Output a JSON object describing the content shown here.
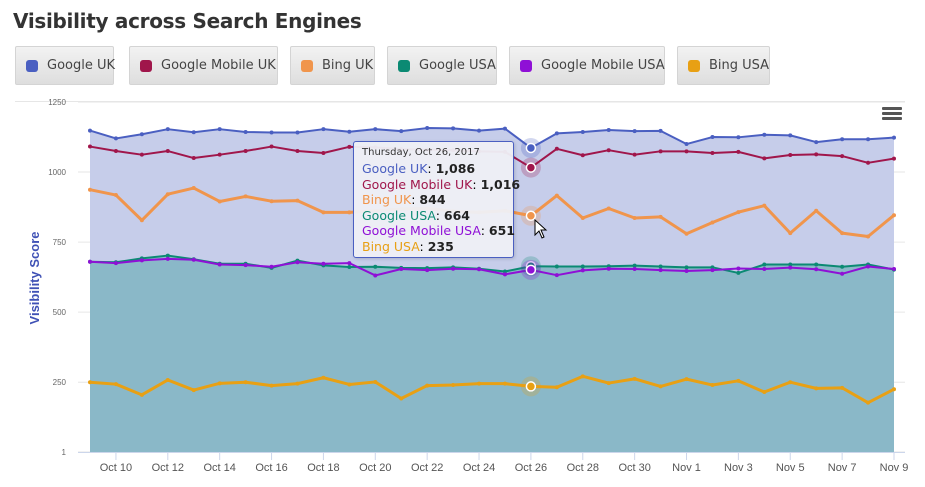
{
  "title": "Visibility across Search Engines",
  "legend": [
    {
      "label": "Google UK",
      "color": "#4a5fc1"
    },
    {
      "label": "Google Mobile UK",
      "color": "#a0164b"
    },
    {
      "label": "Bing UK",
      "color": "#f0954c"
    },
    {
      "label": "Google USA",
      "color": "#0b8a73"
    },
    {
      "label": "Google Mobile USA",
      "color": "#8f10d6"
    },
    {
      "label": "Bing USA",
      "color": "#e8a014"
    }
  ],
  "menu_icon": "hamburger-menu-icon",
  "tooltip": {
    "date": "Thursday, Oct 26, 2017",
    "rows": [
      {
        "name": "Google UK",
        "value": "1,086",
        "color": "#4a5fc1"
      },
      {
        "name": "Google Mobile UK",
        "value": "1,016",
        "color": "#a0164b"
      },
      {
        "name": "Bing UK",
        "value": "844",
        "color": "#f0954c"
      },
      {
        "name": "Google USA",
        "value": "664",
        "color": "#0b8a73"
      },
      {
        "name": "Google Mobile USA",
        "value": "651",
        "color": "#8f10d6"
      },
      {
        "name": "Bing USA",
        "value": "235",
        "color": "#e8a014"
      }
    ]
  },
  "chart_data": {
    "type": "line",
    "title": "Visibility across Search Engines",
    "xlabel": "",
    "ylabel": "Visibility Score",
    "ylim": [
      1,
      1250
    ],
    "yticks": [
      "1",
      "250",
      "500",
      "750",
      "1000",
      "1250"
    ],
    "ytick_values": [
      1,
      250,
      500,
      750,
      1000,
      1250
    ],
    "xtick_labels": [
      "Oct 10",
      "Oct 12",
      "Oct 14",
      "Oct 16",
      "Oct 18",
      "Oct 20",
      "Oct 22",
      "Oct 24",
      "Oct 26",
      "Oct 28",
      "Oct 30",
      "Nov 1",
      "Nov 3",
      "Nov 5",
      "Nov 7",
      "Nov 9"
    ],
    "xtick_indices": [
      1,
      3,
      5,
      7,
      9,
      11,
      13,
      15,
      17,
      19,
      21,
      23,
      25,
      27,
      29,
      31
    ],
    "x": [
      "Oct 9",
      "Oct 10",
      "Oct 11",
      "Oct 12",
      "Oct 13",
      "Oct 14",
      "Oct 15",
      "Oct 16",
      "Oct 17",
      "Oct 18",
      "Oct 19",
      "Oct 20",
      "Oct 21",
      "Oct 22",
      "Oct 23",
      "Oct 24",
      "Oct 25",
      "Oct 26",
      "Oct 27",
      "Oct 28",
      "Oct 29",
      "Oct 30",
      "Oct 31",
      "Nov 1",
      "Nov 2",
      "Nov 3",
      "Nov 4",
      "Nov 5",
      "Nov 6",
      "Nov 7",
      "Nov 8",
      "Nov 9"
    ],
    "grid": true,
    "legend": "top",
    "highlighted_index": 17,
    "series": [
      {
        "name": "Google UK",
        "color": "#4a5fc1",
        "fill": true,
        "values": [
          1148,
          1120,
          1135,
          1153,
          1142,
          1153,
          1143,
          1141,
          1141,
          1153,
          1144,
          1153,
          1146,
          1157,
          1156,
          1148,
          1155,
          1086,
          1138,
          1143,
          1150,
          1146,
          1147,
          1100,
          1125,
          1124,
          1133,
          1131,
          1107,
          1117,
          1117,
          1123
        ]
      },
      {
        "name": "Google Mobile UK",
        "color": "#a0164b",
        "fill": false,
        "values": [
          1091,
          1075,
          1062,
          1075,
          1050,
          1062,
          1075,
          1091,
          1075,
          1068,
          1090,
          1088,
          1082,
          1080,
          1078,
          1074,
          1072,
          1016,
          1083,
          1060,
          1078,
          1062,
          1074,
          1074,
          1068,
          1072,
          1049,
          1061,
          1063,
          1057,
          1033,
          1048
        ]
      },
      {
        "name": "Bing UK",
        "color": "#f0954c",
        "fill": false,
        "values": [
          937,
          918,
          828,
          921,
          943,
          895,
          913,
          896,
          898,
          856,
          856,
          862,
          868,
          870,
          860,
          856,
          862,
          844,
          916,
          836,
          870,
          836,
          840,
          780,
          820,
          857,
          880,
          782,
          862,
          782,
          770,
          846
        ]
      },
      {
        "name": "Google USA",
        "color": "#0b8a73",
        "fill": true,
        "values": [
          680,
          678,
          692,
          702,
          689,
          673,
          673,
          658,
          684,
          667,
          661,
          662,
          658,
          657,
          660,
          655,
          645,
          664,
          663,
          663,
          664,
          666,
          663,
          660,
          660,
          640,
          670,
          670,
          670,
          662,
          670,
          652
        ]
      },
      {
        "name": "Google Mobile USA",
        "color": "#8f10d6",
        "fill": false,
        "values": [
          680,
          675,
          685,
          690,
          687,
          670,
          668,
          662,
          678,
          673,
          675,
          631,
          654,
          650,
          655,
          653,
          635,
          651,
          632,
          649,
          655,
          654,
          650,
          647,
          650,
          656,
          654,
          659,
          653,
          637,
          663,
          654
        ]
      },
      {
        "name": "Bing USA",
        "color": "#e8a014",
        "fill": false,
        "values": [
          250,
          243,
          205,
          258,
          222,
          246,
          250,
          238,
          245,
          266,
          242,
          251,
          192,
          238,
          240,
          245,
          245,
          235,
          232,
          271,
          247,
          262,
          235,
          261,
          240,
          255,
          215,
          250,
          228,
          230,
          177,
          225
        ]
      }
    ]
  }
}
